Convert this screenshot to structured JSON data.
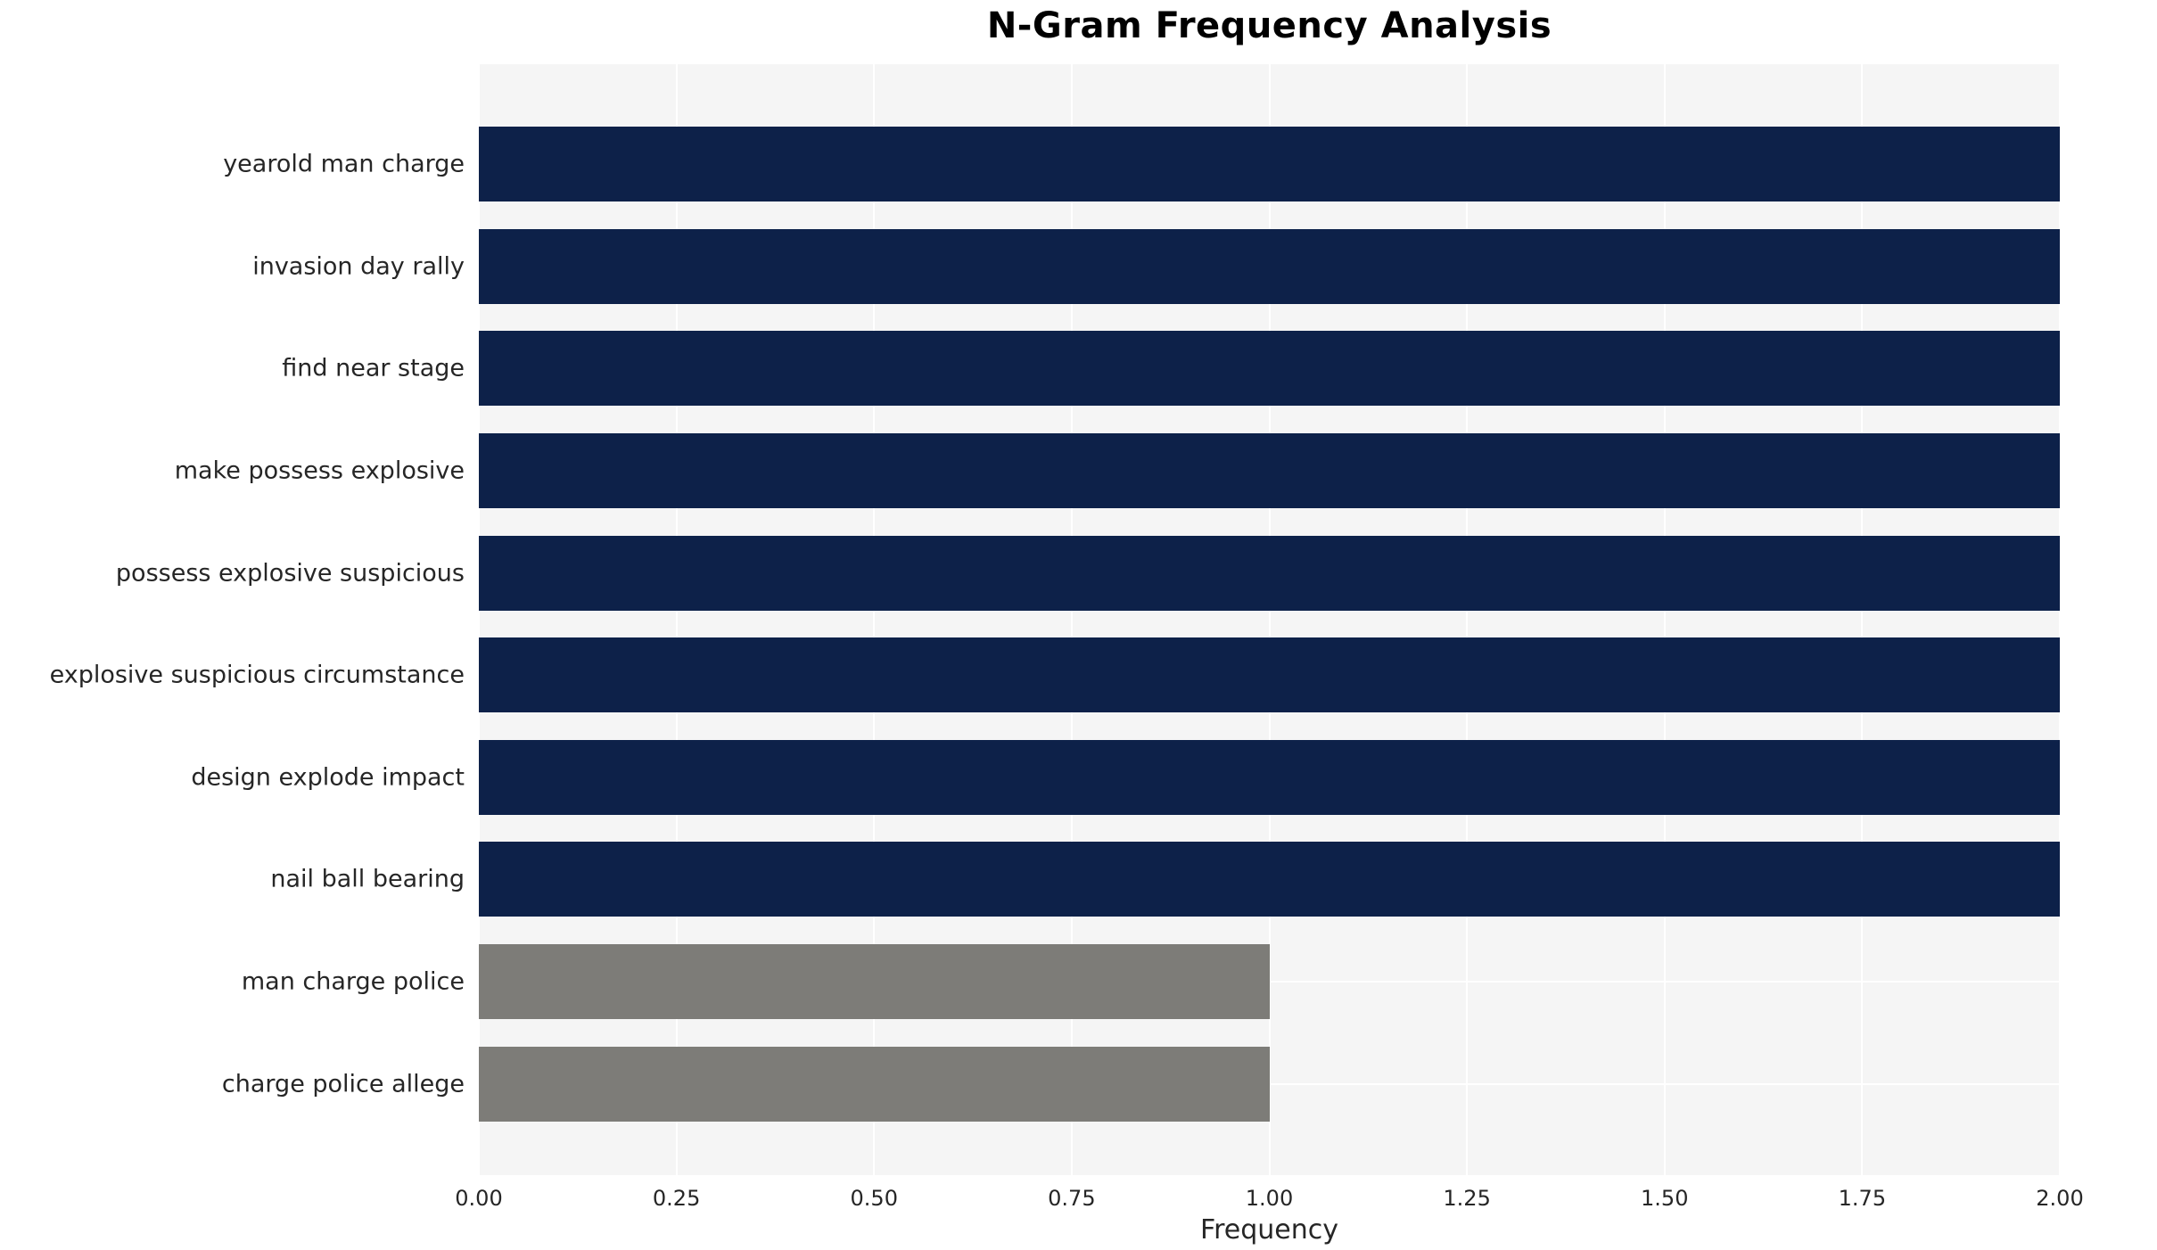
{
  "chart_data": {
    "type": "bar",
    "orientation": "horizontal",
    "title": "N-Gram Frequency Analysis",
    "xlabel": "Frequency",
    "ylabel": "",
    "categories": [
      "yearold man charge",
      "invasion day rally",
      "find near stage",
      "make possess explosive",
      "possess explosive suspicious",
      "explosive suspicious circumstance",
      "design explode impact",
      "nail ball bearing",
      "man charge police",
      "charge police allege"
    ],
    "values": [
      2,
      2,
      2,
      2,
      2,
      2,
      2,
      2,
      1,
      1
    ],
    "bar_colors": [
      "#0d2149",
      "#0d2149",
      "#0d2149",
      "#0d2149",
      "#0d2149",
      "#0d2149",
      "#0d2149",
      "#0d2149",
      "#7d7c78",
      "#7d7c78"
    ],
    "xlim": [
      0,
      2.0
    ],
    "xticks": [
      0,
      0.25,
      0.5,
      0.75,
      1.0,
      1.25,
      1.5,
      1.75,
      2.0
    ],
    "xtick_labels": [
      "0.00",
      "0.25",
      "0.50",
      "0.75",
      "1.00",
      "1.25",
      "1.50",
      "1.75",
      "2.00"
    ],
    "grid": true,
    "legend": false,
    "plot_background": "#f5f5f5",
    "grid_color": "#ffffff"
  }
}
